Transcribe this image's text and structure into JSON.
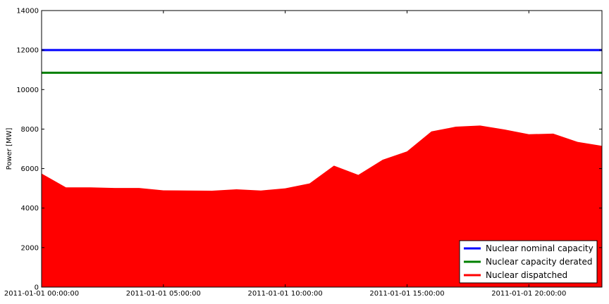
{
  "chart_data": {
    "type": "area",
    "title": "",
    "xlabel": "",
    "ylabel": "Power [MW]",
    "ylim": [
      0,
      14000
    ],
    "yticks": [
      0,
      2000,
      4000,
      6000,
      8000,
      10000,
      12000,
      14000
    ],
    "xlim_hours": [
      0,
      23
    ],
    "x_start": "2011-01-01 00:00:00",
    "xticks": [
      {
        "hour": 0,
        "label": "2011-01-01 00:00:00"
      },
      {
        "hour": 5,
        "label": "2011-01-01 05:00:00"
      },
      {
        "hour": 10,
        "label": "2011-01-01 10:00:00"
      },
      {
        "hour": 15,
        "label": "2011-01-01 15:00:00"
      },
      {
        "hour": 20,
        "label": "2011-01-01 20:00:00"
      }
    ],
    "grid": false,
    "legend_position": "lower-right",
    "series": [
      {
        "name": "Nuclear nominal capacity",
        "kind": "line",
        "color": "#0000ff",
        "values": [
          12000,
          12000
        ]
      },
      {
        "name": "Nuclear capacity derated",
        "kind": "line",
        "color": "#008000",
        "values": [
          10850,
          10850
        ]
      },
      {
        "name": "Nuclear dispatched",
        "kind": "area",
        "color": "#ff0000",
        "hours": [
          0,
          1,
          2,
          3,
          4,
          5,
          6,
          7,
          8,
          9,
          10,
          11,
          12,
          13,
          14,
          15,
          16,
          17,
          18,
          19,
          20,
          21,
          22,
          23
        ],
        "values": [
          5750,
          5050,
          5050,
          5020,
          5020,
          4900,
          4890,
          4880,
          4950,
          4890,
          5000,
          5250,
          6150,
          5680,
          6450,
          6870,
          7880,
          8120,
          8180,
          7980,
          7740,
          7770,
          7350,
          7150
        ]
      }
    ]
  }
}
